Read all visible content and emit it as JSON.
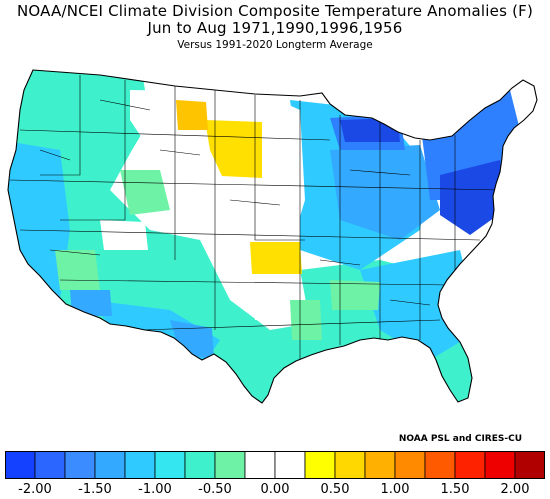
{
  "title": {
    "line1": "NOAA/NCEI Climate Division Composite Temperature Anomalies (F)",
    "line2": "Jun to Aug  1971,1990,1996,1956",
    "line3": "Versus 1991-2020 Longterm Average"
  },
  "credit": "NOAA PSL and CIRES-CU",
  "colorbar": {
    "colors": [
      "#1440ff",
      "#2a66ff",
      "#3b8cff",
      "#33aaff",
      "#2fcaff",
      "#33e6f0",
      "#3ef0cc",
      "#6ef2a6",
      "#ffffff",
      "#ffffff",
      "#ffff00",
      "#ffd800",
      "#ffb000",
      "#ff8a00",
      "#ff5a00",
      "#ff2200",
      "#ee0000",
      "#b00000"
    ],
    "tick_labels": [
      "-2.00",
      "-1.50",
      "-1.00",
      "-0.50",
      "0.00",
      "0.50",
      "1.00",
      "1.50",
      "2.00"
    ]
  },
  "legend_levels": {
    "strong_cool": "#1b49e6",
    "moderate_cool": "#2f80ff",
    "mild_cool": "#33aaff",
    "slight_cool": "#2fcaff",
    "near_normal_cool": "#3ef0cc",
    "cool_green": "#6ef2a6",
    "neutral": "#ffffff",
    "warm": "#ffe000",
    "warm_orange": "#ffc400"
  },
  "map_fill_order": [
    "neutral",
    "near_normal_cool",
    "slight_cool",
    "cool_green",
    "warm",
    "warm_orange",
    "mild_cool",
    "moderate_cool",
    "strong_cool"
  ]
}
